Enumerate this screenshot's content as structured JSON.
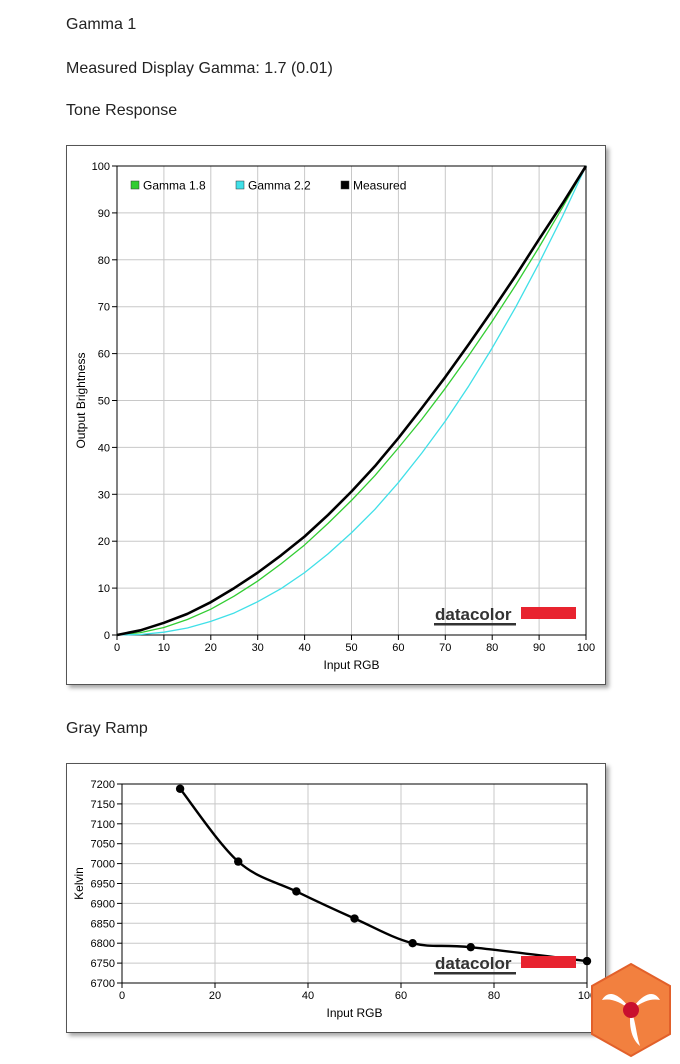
{
  "page": {
    "title": "Gamma 1",
    "measured_gamma_label": "Measured Display Gamma: 1.7 (0.01)",
    "section1_title": "Tone Response",
    "section2_title": "Gray Ramp"
  },
  "watermark": {
    "text": "datacolor",
    "accent": "#e8232f"
  },
  "colors": {
    "gamma18": "#32cd32",
    "gamma22": "#40e0e8",
    "measured": "#000000",
    "grid": "#c8c8c8"
  },
  "chart_data": [
    {
      "type": "line",
      "xlabel": "Input RGB",
      "ylabel": "Output Brightness",
      "xlim": [
        0,
        100
      ],
      "ylim": [
        0,
        100
      ],
      "xticks": [
        "0",
        "10",
        "20",
        "30",
        "40",
        "50",
        "60",
        "70",
        "80",
        "90",
        "100"
      ],
      "yticks": [
        "0",
        "10",
        "20",
        "30",
        "40",
        "50",
        "60",
        "70",
        "80",
        "90",
        "100"
      ],
      "grid": true,
      "legend_position": "top-left",
      "legend": [
        "Gamma 1.8",
        "Gamma 2.2",
        "Measured"
      ],
      "x": [
        0,
        5,
        10,
        15,
        20,
        25,
        30,
        35,
        40,
        45,
        50,
        55,
        60,
        65,
        70,
        75,
        80,
        85,
        90,
        95,
        100
      ],
      "series": [
        {
          "name": "Gamma 1.8",
          "values": [
            0,
            0.5,
            1.6,
            3.3,
            5.5,
            8.3,
            11.5,
            15.2,
            19.2,
            23.8,
            28.7,
            34.0,
            39.9,
            46.0,
            52.6,
            59.6,
            66.9,
            74.6,
            82.7,
            91.2,
            100
          ]
        },
        {
          "name": "Gamma 2.2",
          "values": [
            0,
            0.1,
            0.6,
            1.5,
            2.9,
            4.7,
            7.1,
            9.9,
            13.3,
            17.3,
            21.8,
            26.8,
            32.5,
            38.8,
            45.6,
            53.1,
            61.2,
            69.9,
            79.3,
            89.3,
            100
          ]
        },
        {
          "name": "Measured",
          "values": [
            0,
            1.0,
            2.6,
            4.5,
            7.0,
            10.0,
            13.3,
            17.0,
            21.0,
            25.6,
            30.6,
            36.0,
            42.0,
            48.4,
            55.0,
            62.0,
            69.2,
            76.6,
            84.4,
            92.0,
            100
          ]
        }
      ]
    },
    {
      "type": "line",
      "xlabel": "Input RGB",
      "ylabel": "Kelvin",
      "xlim": [
        0,
        100
      ],
      "ylim": [
        6700,
        7200
      ],
      "xticks": [
        "0",
        "20",
        "40",
        "60",
        "80",
        "100"
      ],
      "yticks": [
        "6700",
        "6750",
        "6800",
        "6850",
        "6900",
        "6950",
        "7000",
        "7050",
        "7100",
        "7150",
        "7200"
      ],
      "grid": true,
      "series": [
        {
          "name": "",
          "x": [
            12.5,
            25,
            37.5,
            50,
            62.5,
            75,
            100
          ],
          "values": [
            7188,
            7005,
            6930,
            6862,
            6800,
            6790,
            6755
          ]
        }
      ]
    }
  ]
}
